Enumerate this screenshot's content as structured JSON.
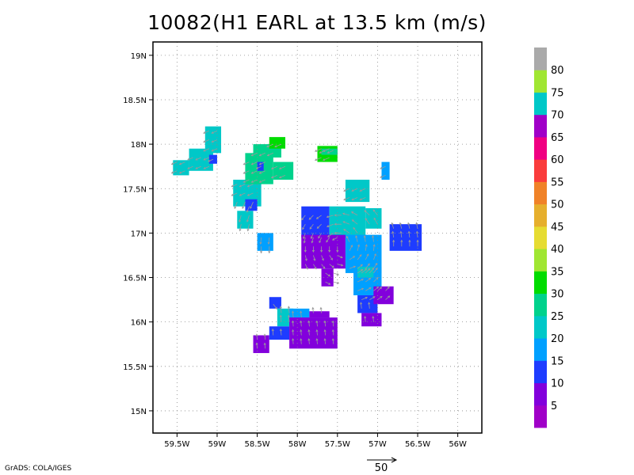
{
  "title": "10082(H1 EARL at 13.5 km (m/s)",
  "credit": "GrADS: COLA/IGES",
  "reference_vector": {
    "label": "50",
    "value": 50
  },
  "map": {
    "lon_range": [
      -59.8,
      -55.7
    ],
    "lat_range": [
      14.75,
      19.15
    ],
    "grid": true,
    "x_ticks": [
      {
        "value": -59.5,
        "label": "59.5W"
      },
      {
        "value": -59.0,
        "label": "59W"
      },
      {
        "value": -58.5,
        "label": "58.5W"
      },
      {
        "value": -58.0,
        "label": "58W"
      },
      {
        "value": -57.5,
        "label": "57.5W"
      },
      {
        "value": -57.0,
        "label": "57W"
      },
      {
        "value": -56.5,
        "label": "56.5W"
      },
      {
        "value": -56.0,
        "label": "56W"
      }
    ],
    "y_ticks": [
      {
        "value": 19.0,
        "label": "19N"
      },
      {
        "value": 18.5,
        "label": "18.5N"
      },
      {
        "value": 18.0,
        "label": "18N"
      },
      {
        "value": 17.5,
        "label": "17.5N"
      },
      {
        "value": 17.0,
        "label": "17N"
      },
      {
        "value": 16.5,
        "label": "16.5N"
      },
      {
        "value": 16.0,
        "label": "16N"
      },
      {
        "value": 15.5,
        "label": "15.5N"
      },
      {
        "value": 15.0,
        "label": "15N"
      }
    ]
  },
  "colorbar": {
    "labels": [
      "5",
      "10",
      "15",
      "20",
      "25",
      "30",
      "35",
      "40",
      "45",
      "50",
      "55",
      "60",
      "65",
      "70",
      "75",
      "80"
    ],
    "colors": [
      "#a000c8",
      "#8200dc",
      "#1e3cff",
      "#00a0ff",
      "#00c8c8",
      "#00d28c",
      "#00dc00",
      "#a0e632",
      "#e6dc32",
      "#e6af2d",
      "#f08228",
      "#fa3c3c",
      "#f00082",
      "#a000c8",
      "#00c8c8",
      "#a0e632",
      "#aaaaaa"
    ]
  },
  "chart_data": {
    "type": "heatmap",
    "title": "10082(H1 EARL at 13.5 km (m/s)",
    "units": "m/s",
    "regions": [
      {
        "lon": [
          -59.55,
          -59.35
        ],
        "lat": [
          17.65,
          17.82
        ],
        "value": 22
      },
      {
        "lon": [
          -59.35,
          -59.05
        ],
        "lat": [
          17.7,
          17.95
        ],
        "value": 20
      },
      {
        "lon": [
          -59.15,
          -58.95
        ],
        "lat": [
          17.9,
          18.2
        ],
        "value": 22
      },
      {
        "lon": [
          -59.1,
          -59.0
        ],
        "lat": [
          17.78,
          17.88
        ],
        "value": 14
      },
      {
        "lon": [
          -58.8,
          -58.45
        ],
        "lat": [
          17.3,
          17.6
        ],
        "value": 24
      },
      {
        "lon": [
          -58.65,
          -58.3
        ],
        "lat": [
          17.55,
          17.9
        ],
        "value": 26
      },
      {
        "lon": [
          -58.55,
          -58.2
        ],
        "lat": [
          17.85,
          18.0
        ],
        "value": 27
      },
      {
        "lon": [
          -58.35,
          -58.15
        ],
        "lat": [
          17.95,
          18.08
        ],
        "value": 34
      },
      {
        "lon": [
          -58.3,
          -58.05
        ],
        "lat": [
          17.6,
          17.8
        ],
        "value": 26
      },
      {
        "lon": [
          -58.5,
          -58.42
        ],
        "lat": [
          17.7,
          17.8
        ],
        "value": 14
      },
      {
        "lon": [
          -58.65,
          -58.5
        ],
        "lat": [
          17.25,
          17.38
        ],
        "value": 14
      },
      {
        "lon": [
          -58.75,
          -58.55
        ],
        "lat": [
          17.05,
          17.25
        ],
        "value": 22
      },
      {
        "lon": [
          -58.5,
          -58.3
        ],
        "lat": [
          16.8,
          17.0
        ],
        "value": 19
      },
      {
        "lon": [
          -57.75,
          -57.5
        ],
        "lat": [
          17.8,
          17.98
        ],
        "value": 33
      },
      {
        "lon": [
          -57.7,
          -57.5
        ],
        "lat": [
          17.88,
          17.95
        ],
        "value": 28
      },
      {
        "lon": [
          -57.4,
          -57.1
        ],
        "lat": [
          17.35,
          17.6
        ],
        "value": 24
      },
      {
        "lon": [
          -56.95,
          -56.85
        ],
        "lat": [
          17.6,
          17.8
        ],
        "value": 19
      },
      {
        "lon": [
          -57.95,
          -57.6
        ],
        "lat": [
          16.95,
          17.3
        ],
        "value": 12
      },
      {
        "lon": [
          -57.6,
          -57.15
        ],
        "lat": [
          16.95,
          17.3
        ],
        "value": 22
      },
      {
        "lon": [
          -57.15,
          -56.95
        ],
        "lat": [
          17.05,
          17.28
        ],
        "value": 24
      },
      {
        "lon": [
          -57.95,
          -57.4
        ],
        "lat": [
          16.6,
          16.98
        ],
        "value": 8
      },
      {
        "lon": [
          -57.4,
          -56.95
        ],
        "lat": [
          16.55,
          16.98
        ],
        "value": 16
      },
      {
        "lon": [
          -57.7,
          -57.55
        ],
        "lat": [
          16.4,
          16.6
        ],
        "value": 8
      },
      {
        "lon": [
          -57.3,
          -56.95
        ],
        "lat": [
          16.3,
          16.62
        ],
        "value": 16
      },
      {
        "lon": [
          -57.25,
          -57.05
        ],
        "lat": [
          16.5,
          16.62
        ],
        "value": 20
      },
      {
        "lon": [
          -57.25,
          -57.0
        ],
        "lat": [
          16.1,
          16.3
        ],
        "value": 14
      },
      {
        "lon": [
          -57.05,
          -56.8
        ],
        "lat": [
          16.2,
          16.4
        ],
        "value": 8
      },
      {
        "lon": [
          -57.2,
          -56.95
        ],
        "lat": [
          15.95,
          16.1
        ],
        "value": 8
      },
      {
        "lon": [
          -56.85,
          -56.45
        ],
        "lat": [
          16.8,
          17.1
        ],
        "value": 14
      },
      {
        "lon": [
          -58.35,
          -58.2
        ],
        "lat": [
          16.15,
          16.28
        ],
        "value": 14
      },
      {
        "lon": [
          -58.25,
          -58.05
        ],
        "lat": [
          15.95,
          16.15
        ],
        "value": 20
      },
      {
        "lon": [
          -58.1,
          -57.85
        ],
        "lat": [
          16.0,
          16.15
        ],
        "value": 16
      },
      {
        "lon": [
          -58.55,
          -58.35
        ],
        "lat": [
          15.65,
          15.85
        ],
        "value": 8
      },
      {
        "lon": [
          -58.35,
          -58.1
        ],
        "lat": [
          15.8,
          15.95
        ],
        "value": 14
      },
      {
        "lon": [
          -58.1,
          -57.5
        ],
        "lat": [
          15.7,
          16.05
        ],
        "value": 7
      },
      {
        "lon": [
          -57.85,
          -57.6
        ],
        "lat": [
          16.05,
          16.12
        ],
        "value": 8
      }
    ]
  }
}
